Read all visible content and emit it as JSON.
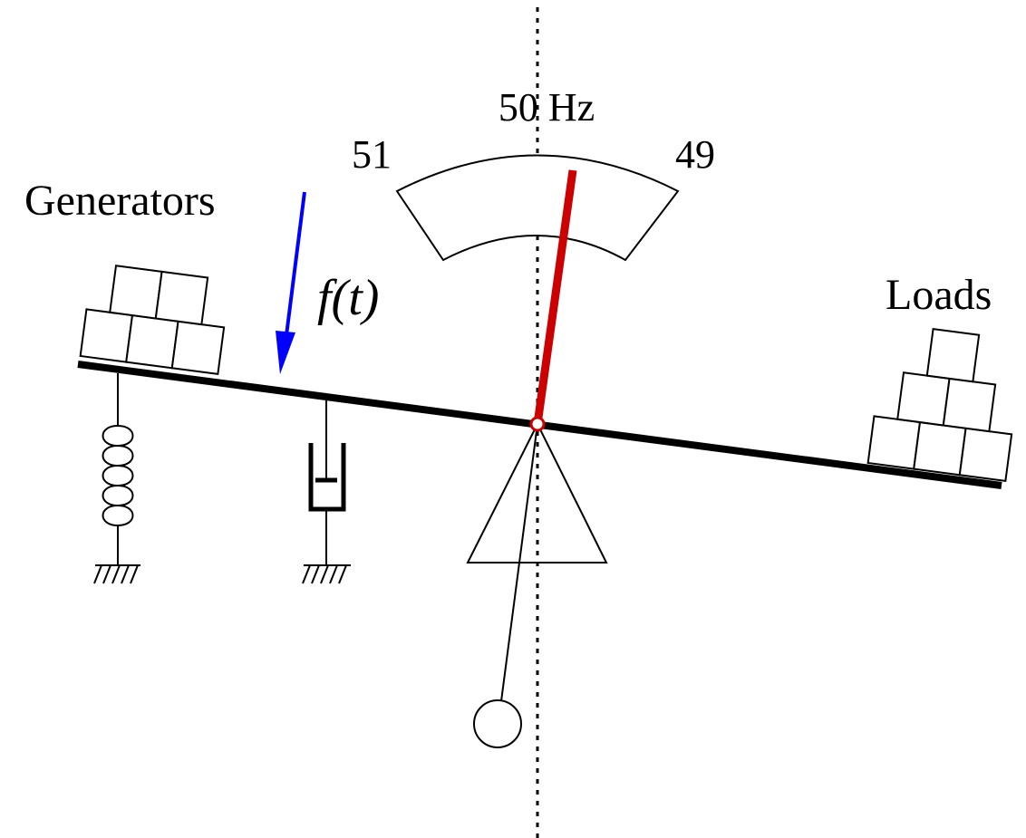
{
  "labels": {
    "generators": "Generators",
    "loads": "Loads",
    "frequency_center": "50 Hz",
    "frequency_left": "51",
    "frequency_right": "49",
    "force": "f(t)"
  },
  "colors": {
    "needle": "#cc0000",
    "force_arrow": "#0000ff",
    "lines": "#000000",
    "background": "#ffffff"
  }
}
